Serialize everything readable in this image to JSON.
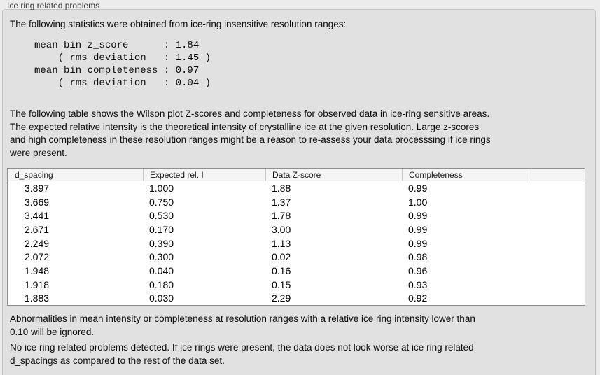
{
  "panel": {
    "title": "Ice ring related problems"
  },
  "stats": {
    "intro": "The following statistics were obtained from ice-ring insensitive resolution ranges:",
    "block": "mean bin z_score      : 1.84\n    ( rms deviation   : 1.45 )\nmean bin completeness : 0.97\n    ( rms deviation   : 0.04 )",
    "values": {
      "mean_bin_z_score": "1.84",
      "z_score_rms_deviation": "1.45",
      "mean_bin_completeness": "0.97",
      "completeness_rms_deviation": "0.04"
    }
  },
  "table_description": "The following table shows the Wilson plot Z-scores and completeness for observed data in ice-ring sensitive areas.\nThe expected relative intensity is the theoretical intensity of crystalline ice at the given resolution. Large z-scores\nand high completeness in these resolution ranges might be a reason to re-assess your data processsing if ice rings\nwere present.",
  "table": {
    "columns": [
      "d_spacing",
      "Expected rel. I",
      "Data Z-score",
      "Completeness"
    ],
    "rows": [
      {
        "d_spacing": "3.897",
        "expected_rel_i": "1.000",
        "data_z_score": "1.88",
        "completeness": "0.99"
      },
      {
        "d_spacing": "3.669",
        "expected_rel_i": "0.750",
        "data_z_score": "1.37",
        "completeness": "1.00"
      },
      {
        "d_spacing": "3.441",
        "expected_rel_i": "0.530",
        "data_z_score": "1.78",
        "completeness": "0.99"
      },
      {
        "d_spacing": "2.671",
        "expected_rel_i": "0.170",
        "data_z_score": "3.00",
        "completeness": "0.99"
      },
      {
        "d_spacing": "2.249",
        "expected_rel_i": "0.390",
        "data_z_score": "1.13",
        "completeness": "0.99"
      },
      {
        "d_spacing": "2.072",
        "expected_rel_i": "0.300",
        "data_z_score": "0.02",
        "completeness": "0.98"
      },
      {
        "d_spacing": "1.948",
        "expected_rel_i": "0.040",
        "data_z_score": "0.16",
        "completeness": "0.96"
      },
      {
        "d_spacing": "1.918",
        "expected_rel_i": "0.180",
        "data_z_score": "0.15",
        "completeness": "0.93"
      },
      {
        "d_spacing": "1.883",
        "expected_rel_i": "0.030",
        "data_z_score": "2.29",
        "completeness": "0.92"
      }
    ]
  },
  "notes": {
    "ignore_note": "Abnormalities in mean intensity or completeness at resolution ranges with a relative ice ring intensity lower than\n0.10 will be ignored.",
    "conclusion": "No ice ring related problems detected. If ice rings were present, the data does not look worse at ice ring related\nd_spacings as compared to the rest of the data set."
  },
  "colors": {
    "page_background": "#ececec",
    "panel_background": "#e1e1e1",
    "panel_border": "#c3c3c3",
    "table_border": "#8f8f8f",
    "table_header_background": "#f5f5f5",
    "text": "#0c0c0c"
  }
}
